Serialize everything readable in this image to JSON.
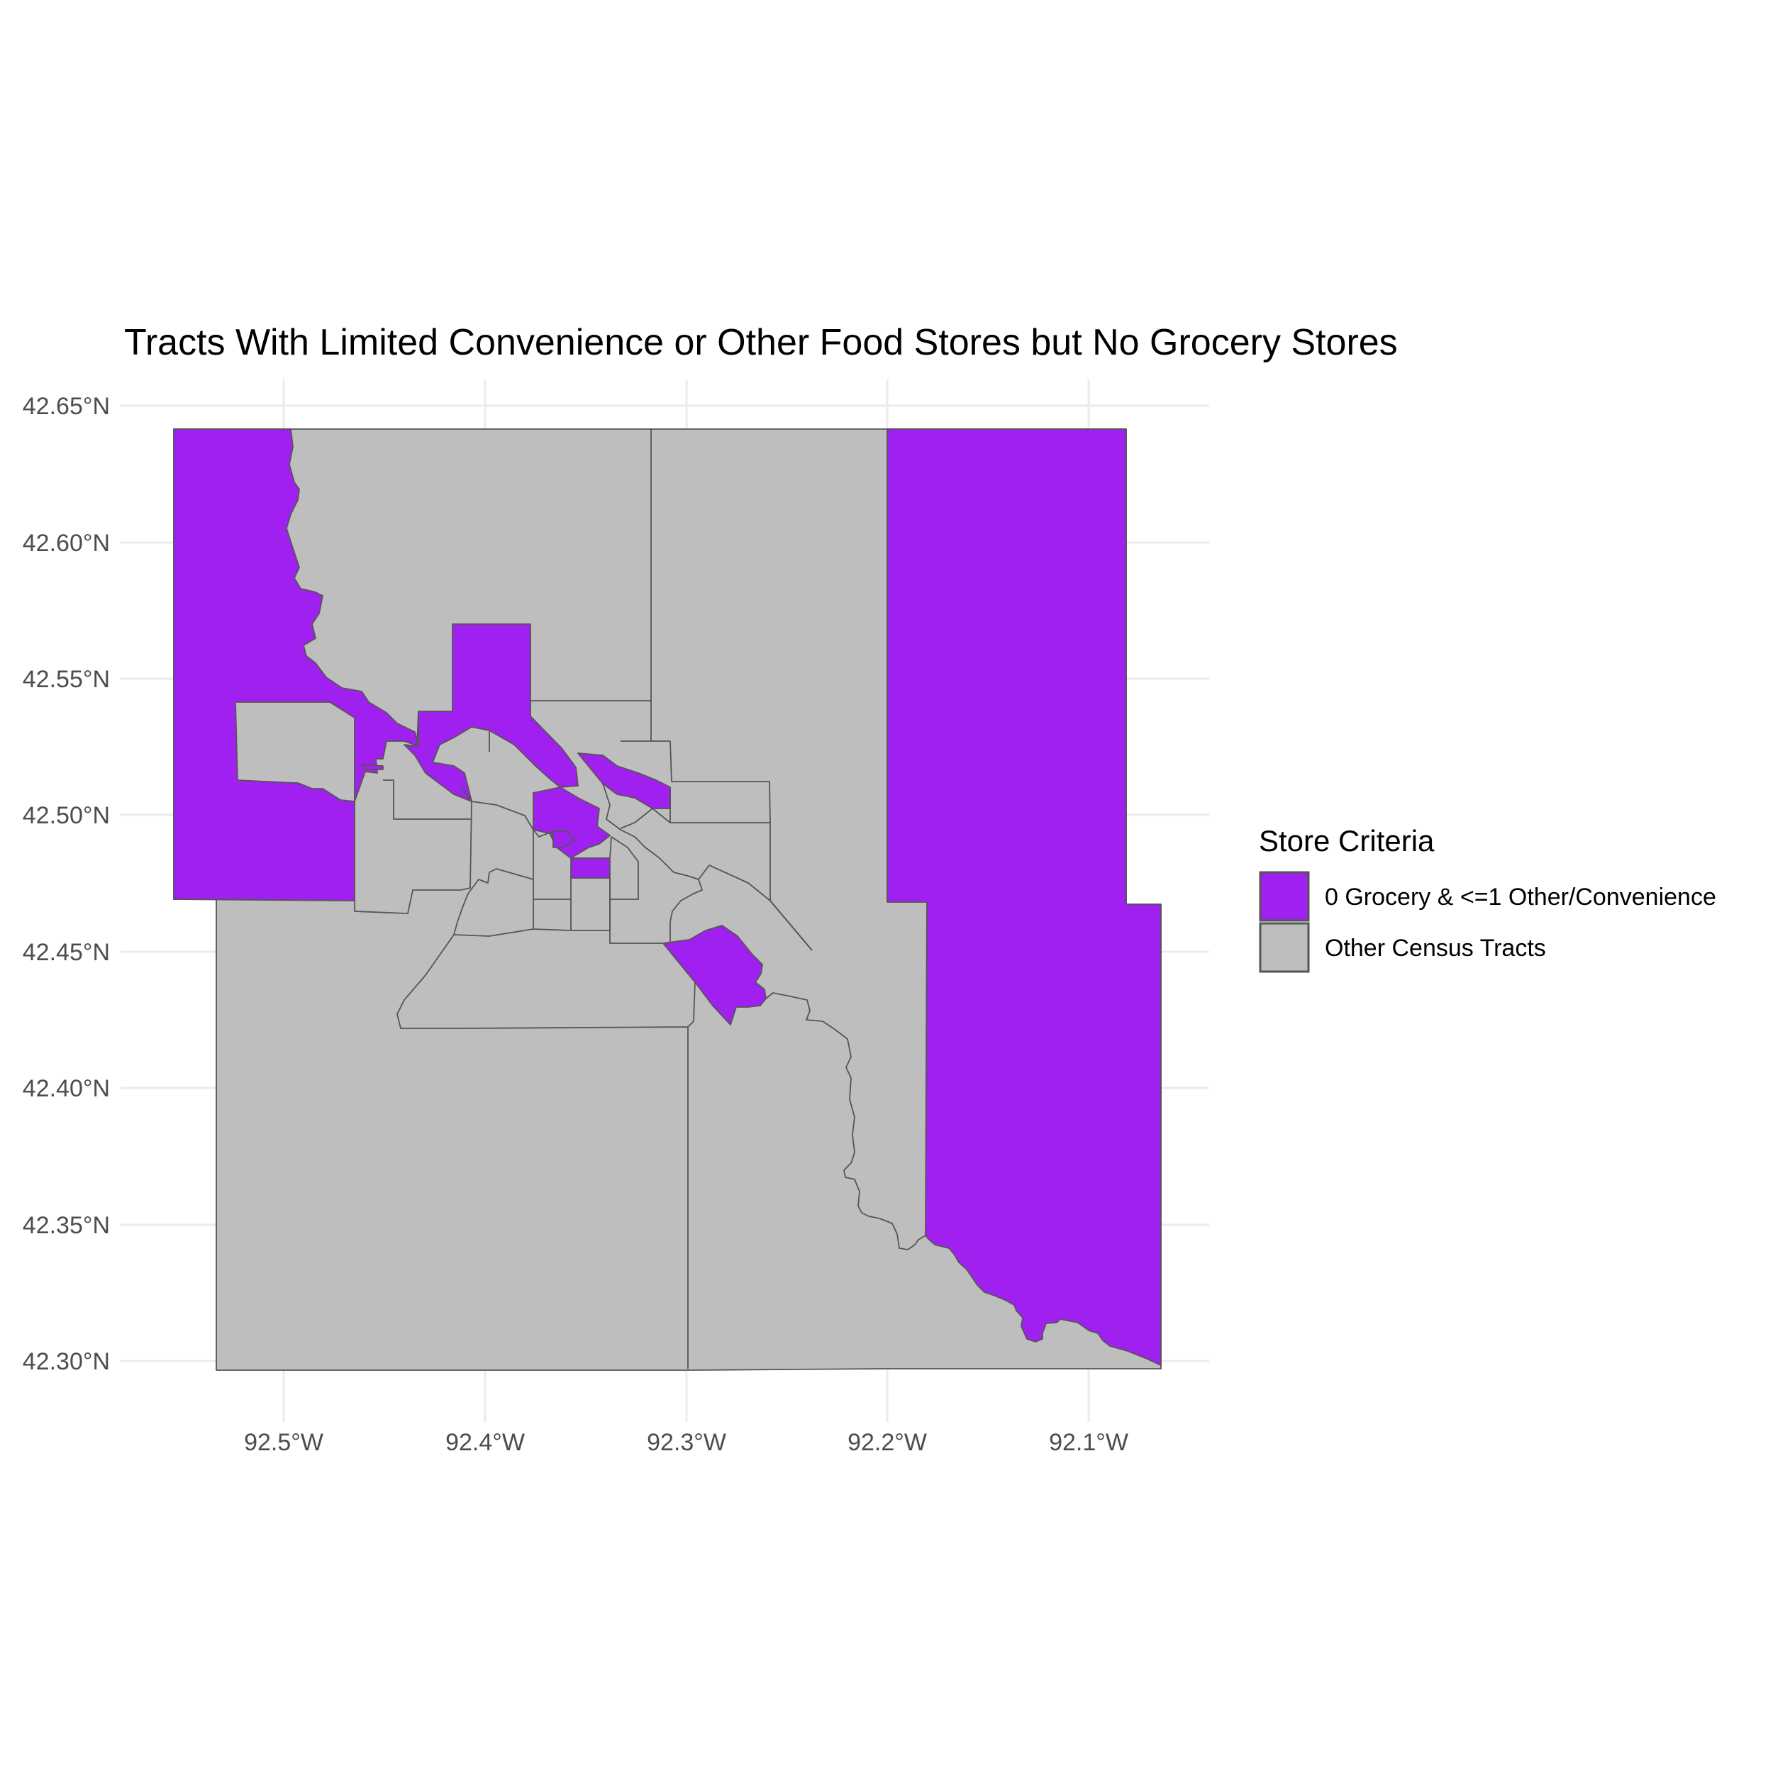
{
  "chart_data": {
    "type": "choropleth-map",
    "title": "Tracts With Limited Convenience or Other Food Stores but No Grocery Stores",
    "x_ticks": [
      {
        "value": -92.5,
        "label": "92.5°W"
      },
      {
        "value": -92.4,
        "label": "92.4°W"
      },
      {
        "value": -92.3,
        "label": "92.3°W"
      },
      {
        "value": -92.2,
        "label": "92.2°W"
      },
      {
        "value": -92.1,
        "label": "92.1°W"
      }
    ],
    "y_ticks": [
      {
        "value": 42.65,
        "label": "42.65°N"
      },
      {
        "value": 42.6,
        "label": "42.60°N"
      },
      {
        "value": 42.55,
        "label": "42.55°N"
      },
      {
        "value": 42.5,
        "label": "42.50°N"
      },
      {
        "value": 42.45,
        "label": "42.45°N"
      },
      {
        "value": 42.4,
        "label": "42.40°N"
      },
      {
        "value": 42.35,
        "label": "42.35°N"
      },
      {
        "value": 42.3,
        "label": "42.30°N"
      }
    ],
    "legend": {
      "title": "Store Criteria",
      "position": "right",
      "entries": [
        {
          "label": "0 Grocery & <=1 Other/Convenience",
          "color": "#a020f0"
        },
        {
          "label": "Other Census Tracts",
          "color": "#bebebe"
        }
      ]
    },
    "grid": true
  }
}
